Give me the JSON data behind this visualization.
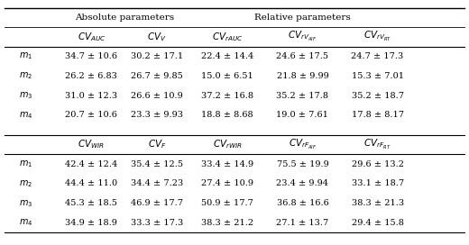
{
  "section_headers": [
    "Absolute parameters",
    "Relative parameters"
  ],
  "col_headers_top": [
    "$CV_{AUC}$",
    "$CV_V$",
    "$CV_{rAUC}$",
    "$CV_{rV_{AIF}}$",
    "$CV_{rV_{RT}}$"
  ],
  "col_headers_bottom": [
    "$CV_{WIR}$",
    "$CV_F$",
    "$CV_{rWIR}$",
    "$CV_{rF_{AIF}}$",
    "$CV_{rF_{RT}}$"
  ],
  "row_labels": [
    "$m_1$",
    "$m_2$",
    "$m_3$",
    "$m_4$"
  ],
  "data_top": [
    [
      "34.7 ± 10.6",
      "30.2 ± 17.1",
      "22.4 ± 14.4",
      "24.6 ± 17.5",
      "24.7 ± 17.3"
    ],
    [
      "26.2 ± 6.83",
      "26.7 ± 9.85",
      "15.0 ± 6.51",
      "21.8 ± 9.99",
      "15.3 ± 7.01"
    ],
    [
      "31.0 ± 12.3",
      "26.6 ± 10.9",
      "37.2 ± 16.8",
      "35.2 ± 17.8",
      "35.2 ± 18.7"
    ],
    [
      "20.7 ± 10.6",
      "23.3 ± 9.93",
      "18.8 ± 8.68",
      "19.0 ± 7.61",
      "17.8 ± 8.17"
    ]
  ],
  "data_bottom": [
    [
      "42.4 ± 12.4",
      "35.4 ± 12.5",
      "33.4 ± 14.9",
      "75.5 ± 19.9",
      "29.6 ± 13.2"
    ],
    [
      "44.4 ± 11.0",
      "34.4 ± 7.23",
      "27.4 ± 10.9",
      "23.4 ± 9.94",
      "33.1 ± 18.7"
    ],
    [
      "45.3 ± 18.5",
      "46.9 ± 17.7",
      "50.9 ± 17.7",
      "36.8 ± 16.6",
      "38.3 ± 21.3"
    ],
    [
      "34.9 ± 18.9",
      "33.3 ± 17.3",
      "38.3 ± 21.2",
      "27.1 ± 13.7",
      "29.4 ± 15.8"
    ]
  ],
  "background_color": "#ffffff",
  "text_color": "#000000",
  "figsize": [
    5.2,
    2.72
  ],
  "dpi": 100
}
